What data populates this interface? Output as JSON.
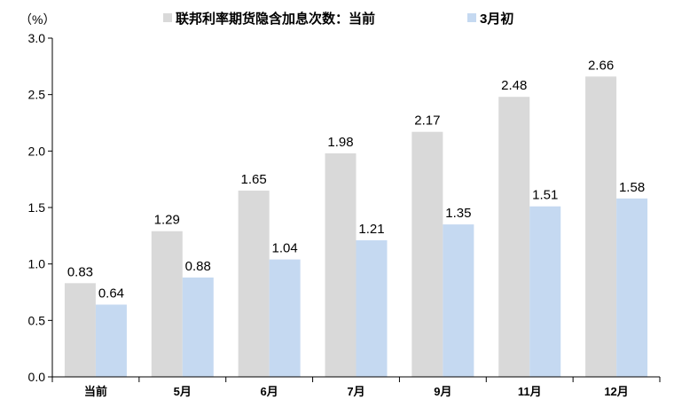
{
  "chart_data": {
    "type": "bar",
    "unit_label": "（%）",
    "categories": [
      "当前",
      "5月",
      "6月",
      "7月",
      "9月",
      "11月",
      "12月"
    ],
    "series": [
      {
        "name": "联邦利率期货隐含加息次数：当前",
        "color": "#d9d9d9",
        "values": [
          0.83,
          1.29,
          1.65,
          1.98,
          2.17,
          2.48,
          2.66
        ]
      },
      {
        "name": "3月初",
        "color": "#c5d9f1",
        "values": [
          0.64,
          0.88,
          1.04,
          1.21,
          1.35,
          1.51,
          1.58
        ]
      }
    ],
    "ylim": [
      0,
      3.0
    ],
    "yticks": [
      "0.0",
      "0.5",
      "1.0",
      "1.5",
      "2.0",
      "2.5",
      "3.0"
    ],
    "legend_position": "top",
    "grid": false
  }
}
